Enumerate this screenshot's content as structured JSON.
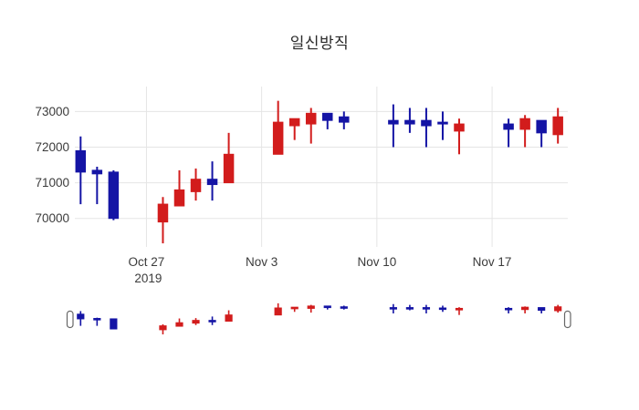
{
  "chart": {
    "title": "일신방직"
  },
  "chart_data": {
    "type": "candlestick",
    "title": "일신방직",
    "grid": true,
    "legend": "none",
    "increasing_color": "#d21c1c",
    "decreasing_color": "#1414a5",
    "handle_border_color": "#666666",
    "grid_color": "#e5e5e5",
    "y_ticks": [
      70000,
      71000,
      72000,
      73000
    ],
    "y_tick_labels": [
      "70000",
      "71000",
      "72000",
      "73000"
    ],
    "y_range": [
      69200,
      73700
    ],
    "x_ticks": [
      {
        "label": "Oct 27",
        "sublabel": "2019",
        "day": 4
      },
      {
        "label": "Nov 3",
        "sublabel": "",
        "day": 11
      },
      {
        "label": "Nov 10",
        "sublabel": "",
        "day": 18
      },
      {
        "label": "Nov 17",
        "sublabel": "",
        "day": 25
      }
    ],
    "x_range_days": [
      -0.35,
      29.6
    ],
    "rangeslider": true,
    "candles": [
      {
        "date": "2019-10-23",
        "day": 0,
        "open": 71900,
        "high": 72300,
        "low": 70400,
        "close": 71300
      },
      {
        "date": "2019-10-24",
        "day": 1,
        "open": 71350,
        "high": 71450,
        "low": 70400,
        "close": 71250
      },
      {
        "date": "2019-10-25",
        "day": 2,
        "open": 71300,
        "high": 71350,
        "low": 69950,
        "close": 70000
      },
      {
        "date": "2019-10-28",
        "day": 5,
        "open": 69900,
        "high": 70600,
        "low": 69300,
        "close": 70400
      },
      {
        "date": "2019-10-29",
        "day": 6,
        "open": 70350,
        "high": 71350,
        "low": 70350,
        "close": 70800
      },
      {
        "date": "2019-10-30",
        "day": 7,
        "open": 70750,
        "high": 71400,
        "low": 70500,
        "close": 71100
      },
      {
        "date": "2019-10-31",
        "day": 8,
        "open": 71100,
        "high": 71600,
        "low": 70500,
        "close": 70950
      },
      {
        "date": "2019-11-01",
        "day": 9,
        "open": 71000,
        "high": 72400,
        "low": 71000,
        "close": 71800
      },
      {
        "date": "2019-11-04",
        "day": 12,
        "open": 71800,
        "high": 73300,
        "low": 71800,
        "close": 72700
      },
      {
        "date": "2019-11-05",
        "day": 13,
        "open": 72600,
        "high": 72800,
        "low": 72200,
        "close": 72800
      },
      {
        "date": "2019-11-06",
        "day": 14,
        "open": 72650,
        "high": 73100,
        "low": 72100,
        "close": 72950
      },
      {
        "date": "2019-11-07",
        "day": 15,
        "open": 72950,
        "high": 72950,
        "low": 72500,
        "close": 72750
      },
      {
        "date": "2019-11-08",
        "day": 16,
        "open": 72850,
        "high": 73000,
        "low": 72500,
        "close": 72700
      },
      {
        "date": "2019-11-11",
        "day": 19,
        "open": 72750,
        "high": 73200,
        "low": 72000,
        "close": 72650
      },
      {
        "date": "2019-11-12",
        "day": 20,
        "open": 72750,
        "high": 73100,
        "low": 72400,
        "close": 72650
      },
      {
        "date": "2019-11-13",
        "day": 21,
        "open": 72750,
        "high": 73100,
        "low": 72000,
        "close": 72600
      },
      {
        "date": "2019-11-14",
        "day": 22,
        "open": 72700,
        "high": 73000,
        "low": 72200,
        "close": 72650
      },
      {
        "date": "2019-11-15",
        "day": 23,
        "open": 72450,
        "high": 72800,
        "low": 71800,
        "close": 72650
      },
      {
        "date": "2019-11-18",
        "day": 26,
        "open": 72650,
        "high": 72800,
        "low": 72000,
        "close": 72500
      },
      {
        "date": "2019-11-19",
        "day": 27,
        "open": 72500,
        "high": 72900,
        "low": 72000,
        "close": 72800
      },
      {
        "date": "2019-11-20",
        "day": 28,
        "open": 72750,
        "high": 72750,
        "low": 72000,
        "close": 72400
      },
      {
        "date": "2019-11-21",
        "day": 29,
        "open": 72350,
        "high": 73100,
        "low": 72100,
        "close": 72850
      }
    ]
  }
}
